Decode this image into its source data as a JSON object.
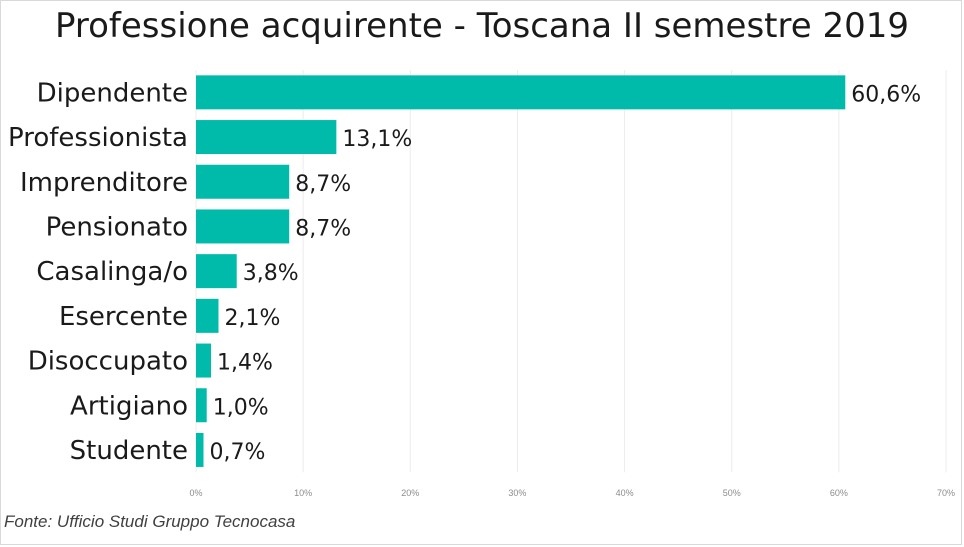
{
  "chart_data": {
    "type": "bar",
    "orientation": "horizontal",
    "title": "Professione acquirente - Toscana II semestre 2019",
    "categories": [
      "Dipendente",
      "Professionista",
      "Imprenditore",
      "Pensionato",
      "Casalinga/o",
      "Esercente",
      "Disoccupato",
      "Artigiano",
      "Studente"
    ],
    "values": [
      60.6,
      13.1,
      8.7,
      8.7,
      3.8,
      2.1,
      1.4,
      1.0,
      0.7
    ],
    "value_labels": [
      "60,6%",
      "13,1%",
      "8,7%",
      "8,7%",
      "3,8%",
      "2,1%",
      "1,4%",
      "1,0%",
      "0,7%"
    ],
    "xlim": [
      0,
      70
    ],
    "x_ticks": [
      0,
      10,
      20,
      30,
      40,
      50,
      60,
      70
    ],
    "x_tick_labels": [
      "0%",
      "10%",
      "20%",
      "30%",
      "40%",
      "50%",
      "60%",
      "70%"
    ],
    "grid": true,
    "legend": "none",
    "bar_color": "#00BBA9"
  },
  "source": "Fonte: Ufficio Studi Gruppo Tecnocasa"
}
